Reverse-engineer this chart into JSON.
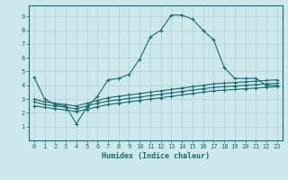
{
  "xlabel": "Humidex (Indice chaleur)",
  "bg_color": "#cce8ec",
  "grid_color": "#b0d0d5",
  "line_color": "#1a6b6b",
  "xlim": [
    -0.5,
    23.5
  ],
  "ylim": [
    0,
    9.8
  ],
  "xticks": [
    0,
    1,
    2,
    3,
    4,
    5,
    6,
    7,
    8,
    9,
    10,
    11,
    12,
    13,
    14,
    15,
    16,
    17,
    18,
    19,
    20,
    21,
    22,
    23
  ],
  "yticks": [
    1,
    2,
    3,
    4,
    5,
    6,
    7,
    8,
    9
  ],
  "series1": [
    [
      0,
      4.6
    ],
    [
      1,
      3.0
    ],
    [
      2,
      2.6
    ],
    [
      3,
      2.5
    ],
    [
      4,
      1.2
    ],
    [
      5,
      2.4
    ],
    [
      6,
      3.2
    ],
    [
      7,
      4.4
    ],
    [
      8,
      4.5
    ],
    [
      9,
      4.8
    ],
    [
      10,
      5.9
    ],
    [
      11,
      7.5
    ],
    [
      12,
      8.0
    ],
    [
      13,
      9.1
    ],
    [
      14,
      9.1
    ],
    [
      15,
      8.8
    ],
    [
      16,
      8.0
    ],
    [
      17,
      7.3
    ],
    [
      18,
      5.3
    ],
    [
      19,
      4.5
    ],
    [
      20,
      4.5
    ],
    [
      21,
      4.5
    ],
    [
      22,
      4.0
    ],
    [
      23,
      4.0
    ]
  ],
  "series2": [
    [
      0,
      3.0
    ],
    [
      1,
      2.8
    ],
    [
      2,
      2.7
    ],
    [
      3,
      2.6
    ],
    [
      4,
      2.5
    ],
    [
      5,
      2.7
    ],
    [
      6,
      2.9
    ],
    [
      7,
      3.1
    ],
    [
      8,
      3.2
    ],
    [
      9,
      3.3
    ],
    [
      10,
      3.4
    ],
    [
      11,
      3.5
    ],
    [
      12,
      3.6
    ],
    [
      13,
      3.7
    ],
    [
      14,
      3.8
    ],
    [
      15,
      3.9
    ],
    [
      16,
      4.0
    ],
    [
      17,
      4.1
    ],
    [
      18,
      4.15
    ],
    [
      19,
      4.2
    ],
    [
      20,
      4.25
    ],
    [
      21,
      4.3
    ],
    [
      22,
      4.35
    ],
    [
      23,
      4.4
    ]
  ],
  "series3": [
    [
      0,
      2.8
    ],
    [
      1,
      2.6
    ],
    [
      2,
      2.5
    ],
    [
      3,
      2.4
    ],
    [
      4,
      2.3
    ],
    [
      5,
      2.5
    ],
    [
      6,
      2.7
    ],
    [
      7,
      2.85
    ],
    [
      8,
      2.95
    ],
    [
      9,
      3.05
    ],
    [
      10,
      3.15
    ],
    [
      11,
      3.25
    ],
    [
      12,
      3.35
    ],
    [
      13,
      3.45
    ],
    [
      14,
      3.55
    ],
    [
      15,
      3.65
    ],
    [
      16,
      3.75
    ],
    [
      17,
      3.85
    ],
    [
      18,
      3.9
    ],
    [
      19,
      3.95
    ],
    [
      20,
      4.0
    ],
    [
      21,
      4.05
    ],
    [
      22,
      4.1
    ],
    [
      23,
      4.15
    ]
  ],
  "series4": [
    [
      0,
      2.5
    ],
    [
      1,
      2.4
    ],
    [
      2,
      2.3
    ],
    [
      3,
      2.2
    ],
    [
      4,
      2.1
    ],
    [
      5,
      2.25
    ],
    [
      6,
      2.45
    ],
    [
      7,
      2.6
    ],
    [
      8,
      2.7
    ],
    [
      9,
      2.8
    ],
    [
      10,
      2.9
    ],
    [
      11,
      3.0
    ],
    [
      12,
      3.1
    ],
    [
      13,
      3.2
    ],
    [
      14,
      3.3
    ],
    [
      15,
      3.4
    ],
    [
      16,
      3.5
    ],
    [
      17,
      3.6
    ],
    [
      18,
      3.65
    ],
    [
      19,
      3.7
    ],
    [
      20,
      3.75
    ],
    [
      21,
      3.8
    ],
    [
      22,
      3.85
    ],
    [
      23,
      3.9
    ]
  ]
}
